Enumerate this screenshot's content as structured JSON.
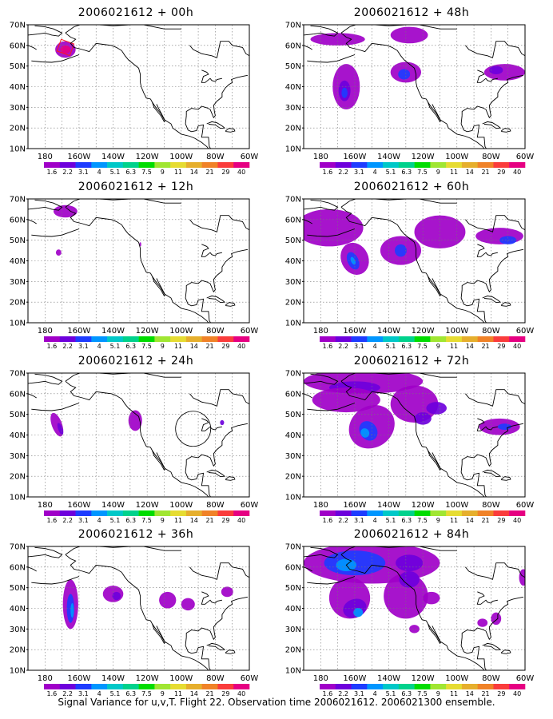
{
  "panels": [
    {
      "id": "p00",
      "title": "2006021612 + 00h"
    },
    {
      "id": "p48",
      "title": "2006021612 + 48h"
    },
    {
      "id": "p12",
      "title": "2006021612 + 12h"
    },
    {
      "id": "p60",
      "title": "2006021612 + 60h"
    },
    {
      "id": "p24",
      "title": "2006021612 + 24h"
    },
    {
      "id": "p72",
      "title": "2006021612 + 72h"
    },
    {
      "id": "p36",
      "title": "2006021612 + 36h"
    },
    {
      "id": "p84",
      "title": "2006021612 + 84h"
    }
  ],
  "lat_ticks": [
    "70N",
    "60N",
    "50N",
    "40N",
    "30N",
    "20N",
    "10N"
  ],
  "lon_ticks": [
    "180",
    "160W",
    "140W",
    "120W",
    "100W",
    "80W",
    "60W"
  ],
  "colorbar": {
    "labels": [
      "1.6",
      "2.2",
      "3.1",
      "4",
      "5.1",
      "6.3",
      "7.5",
      "9",
      "11",
      "14",
      "21",
      "29",
      "40"
    ],
    "colors": [
      "#a000c8",
      "#6e00dc",
      "#1e3cff",
      "#0096ff",
      "#00c8c8",
      "#00d28c",
      "#00dc00",
      "#a0e632",
      "#e6dc32",
      "#e6af2d",
      "#f08228",
      "#fa3c3c",
      "#e60082"
    ]
  },
  "footer": "Signal Variance for u,v,T. Flight 22. Observation time 2006021612. 2006021300 ensemble."
}
